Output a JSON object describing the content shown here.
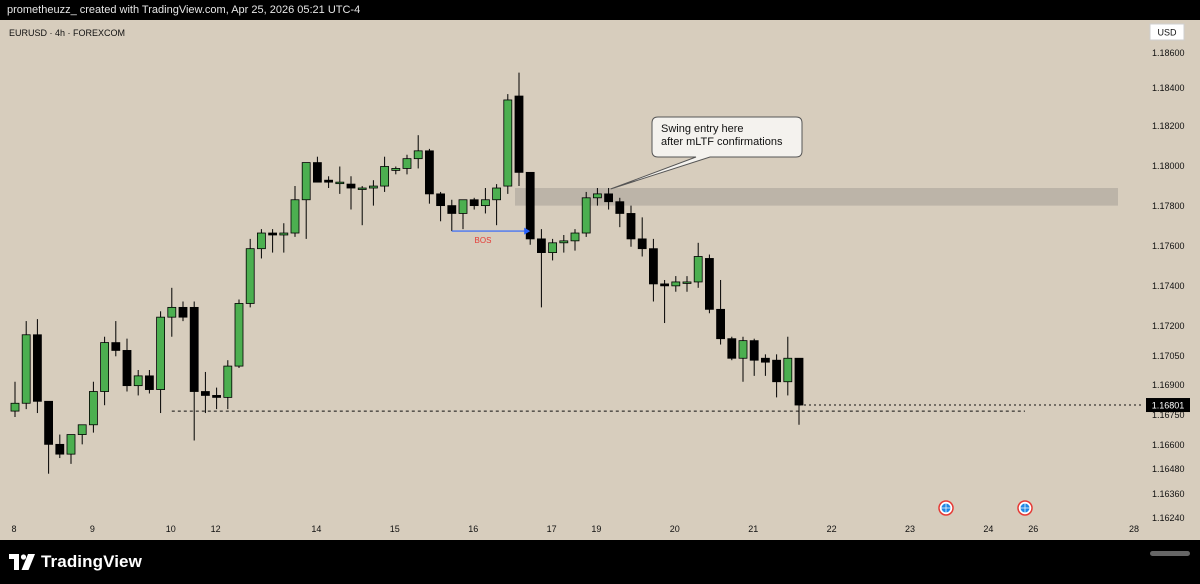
{
  "header": {
    "caption": "prometheuzz_ created with TradingView.com, Apr 25, 2026 05:21 UTC-4"
  },
  "footer": {
    "brand": "TradingView"
  },
  "chart_data": {
    "type": "candlestick",
    "symbol_label": "EURUSD · 4h · FOREXCOM",
    "currency_button": "USD",
    "y_ticks": [
      "1.18600",
      "1.18400",
      "1.18200",
      "1.18000",
      "1.17800",
      "1.17600",
      "1.17400",
      "1.17200",
      "1.17050",
      "1.16900",
      "1.16750",
      "1.16600",
      "1.16480",
      "1.16360",
      "1.16240"
    ],
    "x_ticks": [
      {
        "label": "8",
        "index": 0
      },
      {
        "label": "9",
        "index": 7
      },
      {
        "label": "10",
        "index": 14
      },
      {
        "label": "12",
        "index": 18
      },
      {
        "label": "14",
        "index": 27
      },
      {
        "label": "15",
        "index": 34
      },
      {
        "label": "16",
        "index": 41
      },
      {
        "label": "17",
        "index": 48
      },
      {
        "label": "19",
        "index": 52
      },
      {
        "label": "20",
        "index": 59
      },
      {
        "label": "21",
        "index": 66
      },
      {
        "label": "22",
        "index": 73
      },
      {
        "label": "23",
        "index": 80
      },
      {
        "label": "24",
        "index": 87
      },
      {
        "label": "26",
        "index": 91
      },
      {
        "label": "28",
        "index": 100
      }
    ],
    "last_price": "1.16801",
    "last_price_value": 1.16801,
    "colors": {
      "background": "#d7cdbd",
      "bull": "#4caf50",
      "bear": "#000000",
      "wick": "#000000",
      "zone": "#b7afa4",
      "bos_line": "#2962ff",
      "bos_text": "#e53935",
      "price_tag": "#000000"
    },
    "candles": [
      {
        "o": 1.1677,
        "h": 1.1692,
        "l": 1.1674,
        "c": 1.1681
      },
      {
        "o": 1.1681,
        "h": 1.1723,
        "l": 1.1678,
        "c": 1.1716
      },
      {
        "o": 1.1716,
        "h": 1.1724,
        "l": 1.1676,
        "c": 1.1682
      },
      {
        "o": 1.1682,
        "h": 1.1682,
        "l": 1.1645,
        "c": 1.166
      },
      {
        "o": 1.166,
        "h": 1.1665,
        "l": 1.1653,
        "c": 1.1655
      },
      {
        "o": 1.1655,
        "h": 1.1665,
        "l": 1.165,
        "c": 1.1665
      },
      {
        "o": 1.1665,
        "h": 1.167,
        "l": 1.166,
        "c": 1.167
      },
      {
        "o": 1.167,
        "h": 1.1692,
        "l": 1.1666,
        "c": 1.1687
      },
      {
        "o": 1.1687,
        "h": 1.1715,
        "l": 1.168,
        "c": 1.1712
      },
      {
        "o": 1.1712,
        "h": 1.1723,
        "l": 1.1705,
        "c": 1.1708
      },
      {
        "o": 1.1708,
        "h": 1.1714,
        "l": 1.1687,
        "c": 1.169
      },
      {
        "o": 1.169,
        "h": 1.1698,
        "l": 1.1685,
        "c": 1.1695
      },
      {
        "o": 1.1695,
        "h": 1.1698,
        "l": 1.1686,
        "c": 1.1688
      },
      {
        "o": 1.1688,
        "h": 1.1728,
        "l": 1.1676,
        "c": 1.1725
      },
      {
        "o": 1.1725,
        "h": 1.174,
        "l": 1.1715,
        "c": 1.173
      },
      {
        "o": 1.173,
        "h": 1.1733,
        "l": 1.1723,
        "c": 1.1725
      },
      {
        "o": 1.173,
        "h": 1.1733,
        "l": 1.1662,
        "c": 1.1687
      },
      {
        "o": 1.1687,
        "h": 1.1697,
        "l": 1.1676,
        "c": 1.1685
      },
      {
        "o": 1.1685,
        "h": 1.1689,
        "l": 1.1678,
        "c": 1.1684
      },
      {
        "o": 1.1684,
        "h": 1.1703,
        "l": 1.1678,
        "c": 1.17
      },
      {
        "o": 1.17,
        "h": 1.1734,
        "l": 1.1699,
        "c": 1.1732
      },
      {
        "o": 1.1732,
        "h": 1.1765,
        "l": 1.173,
        "c": 1.176
      },
      {
        "o": 1.176,
        "h": 1.177,
        "l": 1.1755,
        "c": 1.1768
      },
      {
        "o": 1.1768,
        "h": 1.177,
        "l": 1.1758,
        "c": 1.1767
      },
      {
        "o": 1.1767,
        "h": 1.1773,
        "l": 1.1758,
        "c": 1.1768
      },
      {
        "o": 1.1768,
        "h": 1.1792,
        "l": 1.1766,
        "c": 1.1785
      },
      {
        "o": 1.1785,
        "h": 1.1804,
        "l": 1.1765,
        "c": 1.1804
      },
      {
        "o": 1.1804,
        "h": 1.1807,
        "l": 1.1794,
        "c": 1.1794
      },
      {
        "o": 1.1795,
        "h": 1.1797,
        "l": 1.1791,
        "c": 1.1794
      },
      {
        "o": 1.1794,
        "h": 1.1802,
        "l": 1.1788,
        "c": 1.1794
      },
      {
        "o": 1.1793,
        "h": 1.1797,
        "l": 1.178,
        "c": 1.1791
      },
      {
        "o": 1.1791,
        "h": 1.1792,
        "l": 1.1772,
        "c": 1.1791
      },
      {
        "o": 1.1791,
        "h": 1.1795,
        "l": 1.1782,
        "c": 1.1792
      },
      {
        "o": 1.1792,
        "h": 1.1807,
        "l": 1.1789,
        "c": 1.1802
      },
      {
        "o": 1.18,
        "h": 1.1802,
        "l": 1.1798,
        "c": 1.1801
      },
      {
        "o": 1.1801,
        "h": 1.1808,
        "l": 1.1798,
        "c": 1.1806
      },
      {
        "o": 1.1806,
        "h": 1.1818,
        "l": 1.1801,
        "c": 1.181
      },
      {
        "o": 1.181,
        "h": 1.1811,
        "l": 1.1783,
        "c": 1.1788
      },
      {
        "o": 1.1788,
        "h": 1.1789,
        "l": 1.1774,
        "c": 1.1782
      },
      {
        "o": 1.1782,
        "h": 1.1785,
        "l": 1.1769,
        "c": 1.1778
      },
      {
        "o": 1.1778,
        "h": 1.1784,
        "l": 1.177,
        "c": 1.1785
      },
      {
        "o": 1.1785,
        "h": 1.1786,
        "l": 1.178,
        "c": 1.1782
      },
      {
        "o": 1.1782,
        "h": 1.1791,
        "l": 1.1778,
        "c": 1.1785
      },
      {
        "o": 1.1785,
        "h": 1.1793,
        "l": 1.1772,
        "c": 1.1791
      },
      {
        "o": 1.1792,
        "h": 1.1839,
        "l": 1.1788,
        "c": 1.1836
      },
      {
        "o": 1.1838,
        "h": 1.185,
        "l": 1.1792,
        "c": 1.1799
      },
      {
        "o": 1.1799,
        "h": 1.1799,
        "l": 1.1762,
        "c": 1.1765
      },
      {
        "o": 1.1765,
        "h": 1.177,
        "l": 1.173,
        "c": 1.1758
      },
      {
        "o": 1.1758,
        "h": 1.1765,
        "l": 1.1754,
        "c": 1.1763
      },
      {
        "o": 1.1763,
        "h": 1.1767,
        "l": 1.1758,
        "c": 1.1764
      },
      {
        "o": 1.1764,
        "h": 1.177,
        "l": 1.1759,
        "c": 1.1768
      },
      {
        "o": 1.1768,
        "h": 1.1789,
        "l": 1.1766,
        "c": 1.1786
      },
      {
        "o": 1.1786,
        "h": 1.1791,
        "l": 1.1782,
        "c": 1.1788
      },
      {
        "o": 1.1788,
        "h": 1.1791,
        "l": 1.178,
        "c": 1.1784
      },
      {
        "o": 1.1784,
        "h": 1.1786,
        "l": 1.1771,
        "c": 1.1778
      },
      {
        "o": 1.1778,
        "h": 1.1782,
        "l": 1.1761,
        "c": 1.1765
      },
      {
        "o": 1.1765,
        "h": 1.1776,
        "l": 1.1756,
        "c": 1.176
      },
      {
        "o": 1.176,
        "h": 1.1765,
        "l": 1.1733,
        "c": 1.1742
      },
      {
        "o": 1.1742,
        "h": 1.1744,
        "l": 1.1722,
        "c": 1.1741
      },
      {
        "o": 1.1741,
        "h": 1.1746,
        "l": 1.1738,
        "c": 1.1743
      },
      {
        "o": 1.1743,
        "h": 1.1746,
        "l": 1.1738,
        "c": 1.1743
      },
      {
        "o": 1.1743,
        "h": 1.1763,
        "l": 1.174,
        "c": 1.1756
      },
      {
        "o": 1.1755,
        "h": 1.1757,
        "l": 1.1727,
        "c": 1.1729
      },
      {
        "o": 1.1729,
        "h": 1.1744,
        "l": 1.1711,
        "c": 1.1714
      },
      {
        "o": 1.1714,
        "h": 1.1715,
        "l": 1.1703,
        "c": 1.1704
      },
      {
        "o": 1.1704,
        "h": 1.1715,
        "l": 1.1692,
        "c": 1.1713
      },
      {
        "o": 1.1713,
        "h": 1.1714,
        "l": 1.1695,
        "c": 1.1703
      },
      {
        "o": 1.1704,
        "h": 1.1706,
        "l": 1.1695,
        "c": 1.1702
      },
      {
        "o": 1.1703,
        "h": 1.1706,
        "l": 1.1684,
        "c": 1.1692
      },
      {
        "o": 1.1692,
        "h": 1.1715,
        "l": 1.1685,
        "c": 1.1704
      },
      {
        "o": 1.1704,
        "h": 1.1704,
        "l": 1.167,
        "c": 1.16801
      }
    ],
    "x_positions_px_note": "",
    "zone": {
      "y_top": 1.1791,
      "y_bottom": 1.1782,
      "from_index": 45
    },
    "support_level": 1.1677,
    "bos": {
      "level": 1.1769,
      "from_index": 39,
      "to_index": 46,
      "label": "BOS"
    },
    "annotation": {
      "lines": [
        "Swing entry here",
        "after mLTF confirmations"
      ],
      "anchor_index": 53
    },
    "event_icons": [
      {
        "index": 88
      },
      {
        "index": 95
      }
    ]
  }
}
